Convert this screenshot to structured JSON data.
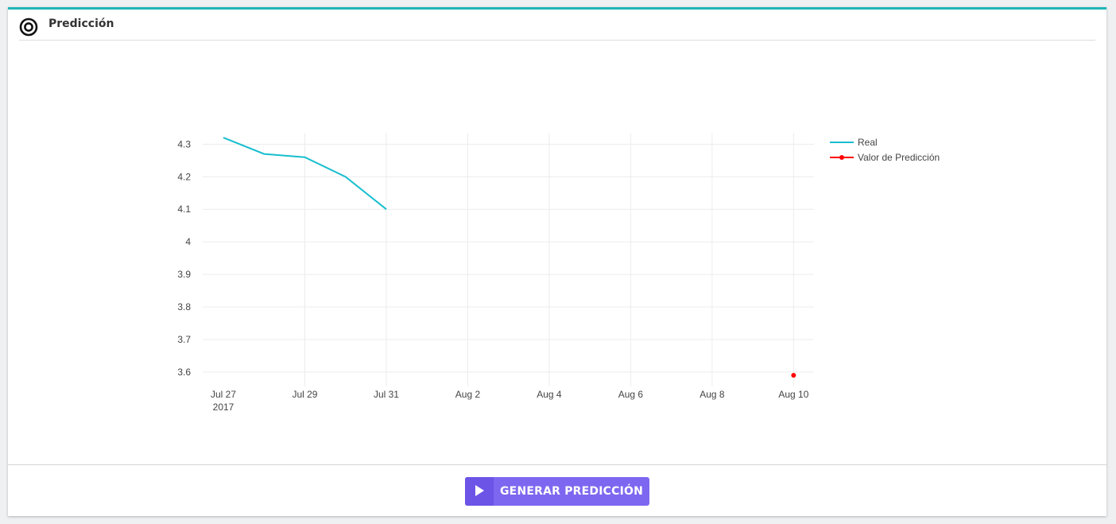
{
  "panel": {
    "title": "Predicción",
    "icon": "target-icon",
    "accent_color": "#1fb5b5"
  },
  "chart_data": {
    "type": "line",
    "title": "",
    "xlabel": "",
    "ylabel": "",
    "x_axis_type": "date",
    "x_ticks": [
      "Jul 27",
      "Jul 29",
      "Jul 31",
      "Aug 2",
      "Aug 4",
      "Aug 6",
      "Aug 8",
      "Aug 10"
    ],
    "x_tick_year": "2017",
    "y_ticks": [
      "3.6",
      "3.7",
      "3.8",
      "3.9",
      "4",
      "4.1",
      "4.2",
      "4.3"
    ],
    "xlim": [
      "2017-07-27",
      "2017-08-10T12:00"
    ],
    "ylim": [
      3.59,
      4.335
    ],
    "grid": true,
    "legend_position": "top-right",
    "series": [
      {
        "name": "Real",
        "color": "#17becf",
        "mode": "lines",
        "x": [
          "2017-07-27",
          "2017-07-28",
          "2017-07-29",
          "2017-07-30",
          "2017-07-31"
        ],
        "y": [
          4.32,
          4.27,
          4.26,
          4.2,
          4.1
        ]
      },
      {
        "name": "Valor de Predicción",
        "color": "#ff0000",
        "mode": "lines+markers",
        "x": [
          "2017-08-10"
        ],
        "y": [
          3.59
        ]
      }
    ]
  },
  "footer": {
    "button_label": "GENERAR PREDICCIÓN",
    "button_icon": "play-icon",
    "button_color": "#7d67f0"
  }
}
